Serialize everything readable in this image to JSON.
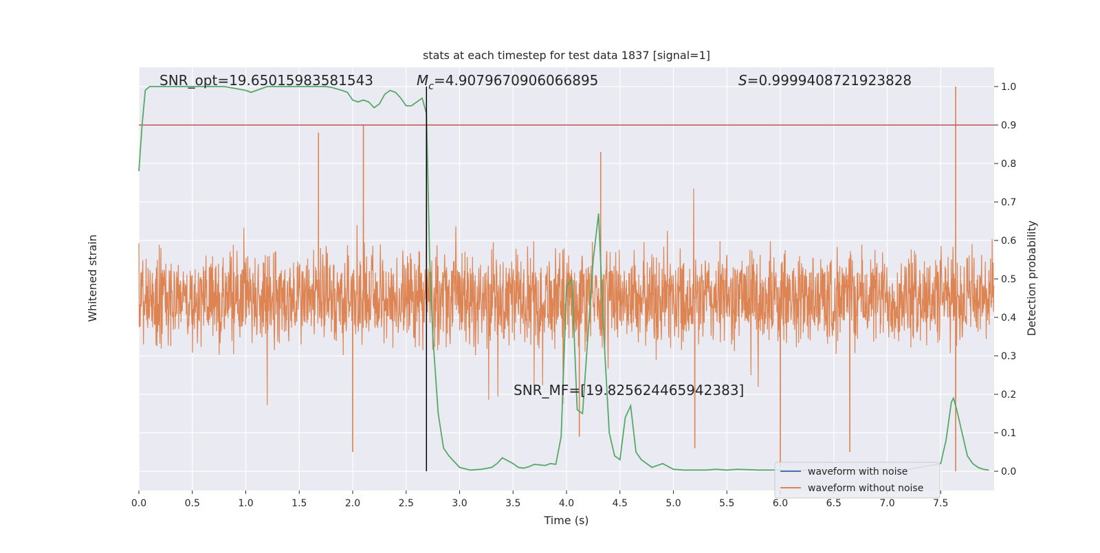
{
  "chart_data": {
    "type": "line",
    "title": "stats at each timestep for test data 1837 [signal=1]",
    "xlabel": "Time (s)",
    "ylabel_left": "Whitened strain",
    "ylabel_right": "Detection probability",
    "xlim": [
      0.0,
      8.0
    ],
    "ylim_right": [
      -0.05,
      1.05
    ],
    "x_ticks": [
      "0.0",
      "0.5",
      "1.0",
      "1.5",
      "2.0",
      "2.5",
      "3.0",
      "3.5",
      "4.0",
      "4.5",
      "5.0",
      "5.5",
      "6.0",
      "6.5",
      "7.0",
      "7.5"
    ],
    "x_tick_values": [
      0.0,
      0.5,
      1.0,
      1.5,
      2.0,
      2.5,
      3.0,
      3.5,
      4.0,
      4.5,
      5.0,
      5.5,
      6.0,
      6.5,
      7.0,
      7.5
    ],
    "y_right_ticks": [
      "0.0",
      "0.1",
      "0.2",
      "0.3",
      "0.4",
      "0.5",
      "0.6",
      "0.7",
      "0.8",
      "0.9",
      "1.0"
    ],
    "y_right_tick_values": [
      0.0,
      0.1,
      0.2,
      0.3,
      0.4,
      0.5,
      0.6,
      0.7,
      0.8,
      0.9,
      1.0
    ],
    "grid": true,
    "legend_position": "lower-right",
    "legend": [
      {
        "label": "waveform with noise",
        "color": "#4c72b0"
      },
      {
        "label": "waveform without noise",
        "color": "#dd8452"
      }
    ],
    "annotations": {
      "snr_opt": "SNR_opt=19.65015983581543",
      "mc_symbol": "M",
      "mc_sub": "c",
      "mc_value": "=4.9079670906066895",
      "s_symbol": "S",
      "s_value": "=0.9999408721923828",
      "snr_mf": "SNR_MF=[19.825624465942383]"
    },
    "threshold": {
      "value": 0.9,
      "color": "#c44e52"
    },
    "merger_time": 2.69,
    "series": [
      {
        "name": "waveform without noise",
        "color": "#dd8452",
        "kind": "strain",
        "baseline": 0.45,
        "envelope_amplitude": 0.12,
        "spikes": [
          {
            "x": 1.68,
            "y": 0.88
          },
          {
            "x": 2.1,
            "y": 0.9
          },
          {
            "x": 2.69,
            "y": 0.93
          },
          {
            "x": 4.32,
            "y": 0.83
          },
          {
            "x": 7.64,
            "y": 1.0
          },
          {
            "x": 2.0,
            "y": 0.05
          },
          {
            "x": 4.12,
            "y": 0.09
          },
          {
            "x": 5.2,
            "y": 0.06
          },
          {
            "x": 6.0,
            "y": 0.01
          },
          {
            "x": 6.65,
            "y": 0.05
          },
          {
            "x": 7.64,
            "y": 0.0
          }
        ]
      },
      {
        "name": "detection probability",
        "color": "#55a868",
        "kind": "probability",
        "x": [
          0.0,
          0.03,
          0.06,
          0.1,
          0.15,
          0.2,
          0.3,
          0.4,
          0.5,
          0.6,
          0.7,
          0.8,
          0.9,
          1.0,
          1.05,
          1.1,
          1.2,
          1.3,
          1.4,
          1.5,
          1.6,
          1.7,
          1.75,
          1.8,
          1.9,
          1.95,
          2.0,
          2.05,
          2.1,
          2.15,
          2.2,
          2.25,
          2.3,
          2.35,
          2.4,
          2.45,
          2.5,
          2.55,
          2.6,
          2.65,
          2.69,
          2.72,
          2.75,
          2.8,
          2.85,
          2.9,
          3.0,
          3.1,
          3.2,
          3.3,
          3.35,
          3.4,
          3.5,
          3.55,
          3.6,
          3.65,
          3.7,
          3.8,
          3.85,
          3.9,
          3.95,
          4.0,
          4.05,
          4.1,
          4.15,
          4.2,
          4.25,
          4.3,
          4.35,
          4.4,
          4.45,
          4.5,
          4.55,
          4.6,
          4.65,
          4.7,
          4.8,
          4.9,
          5.0,
          5.1,
          5.2,
          5.3,
          5.4,
          5.5,
          5.6,
          5.8,
          6.0,
          6.2,
          6.4,
          6.6,
          6.8,
          7.0,
          7.2,
          7.3,
          7.4,
          7.5,
          7.55,
          7.6,
          7.62,
          7.65,
          7.7,
          7.75,
          7.8,
          7.85,
          7.9,
          7.95
        ],
        "y": [
          0.78,
          0.9,
          0.99,
          1.0,
          1.0,
          1.0,
          1.0,
          1.0,
          1.0,
          1.0,
          1.0,
          1.0,
          0.995,
          0.99,
          0.985,
          0.99,
          1.0,
          1.0,
          1.0,
          1.0,
          1.0,
          1.0,
          1.0,
          0.998,
          0.99,
          0.985,
          0.965,
          0.96,
          0.965,
          0.96,
          0.945,
          0.955,
          0.98,
          0.99,
          0.985,
          0.97,
          0.95,
          0.95,
          0.96,
          0.97,
          0.93,
          0.55,
          0.35,
          0.15,
          0.06,
          0.04,
          0.01,
          0.003,
          0.005,
          0.01,
          0.02,
          0.035,
          0.02,
          0.01,
          0.008,
          0.012,
          0.018,
          0.015,
          0.02,
          0.018,
          0.09,
          0.48,
          0.5,
          0.16,
          0.15,
          0.35,
          0.55,
          0.67,
          0.35,
          0.1,
          0.04,
          0.03,
          0.14,
          0.17,
          0.05,
          0.03,
          0.01,
          0.02,
          0.005,
          0.003,
          0.003,
          0.003,
          0.005,
          0.003,
          0.005,
          0.003,
          0.003,
          0.002,
          0.003,
          0.004,
          0.003,
          0.005,
          0.005,
          0.01,
          0.015,
          0.02,
          0.08,
          0.18,
          0.19,
          0.16,
          0.1,
          0.04,
          0.02,
          0.01,
          0.005,
          0.003
        ]
      }
    ]
  }
}
